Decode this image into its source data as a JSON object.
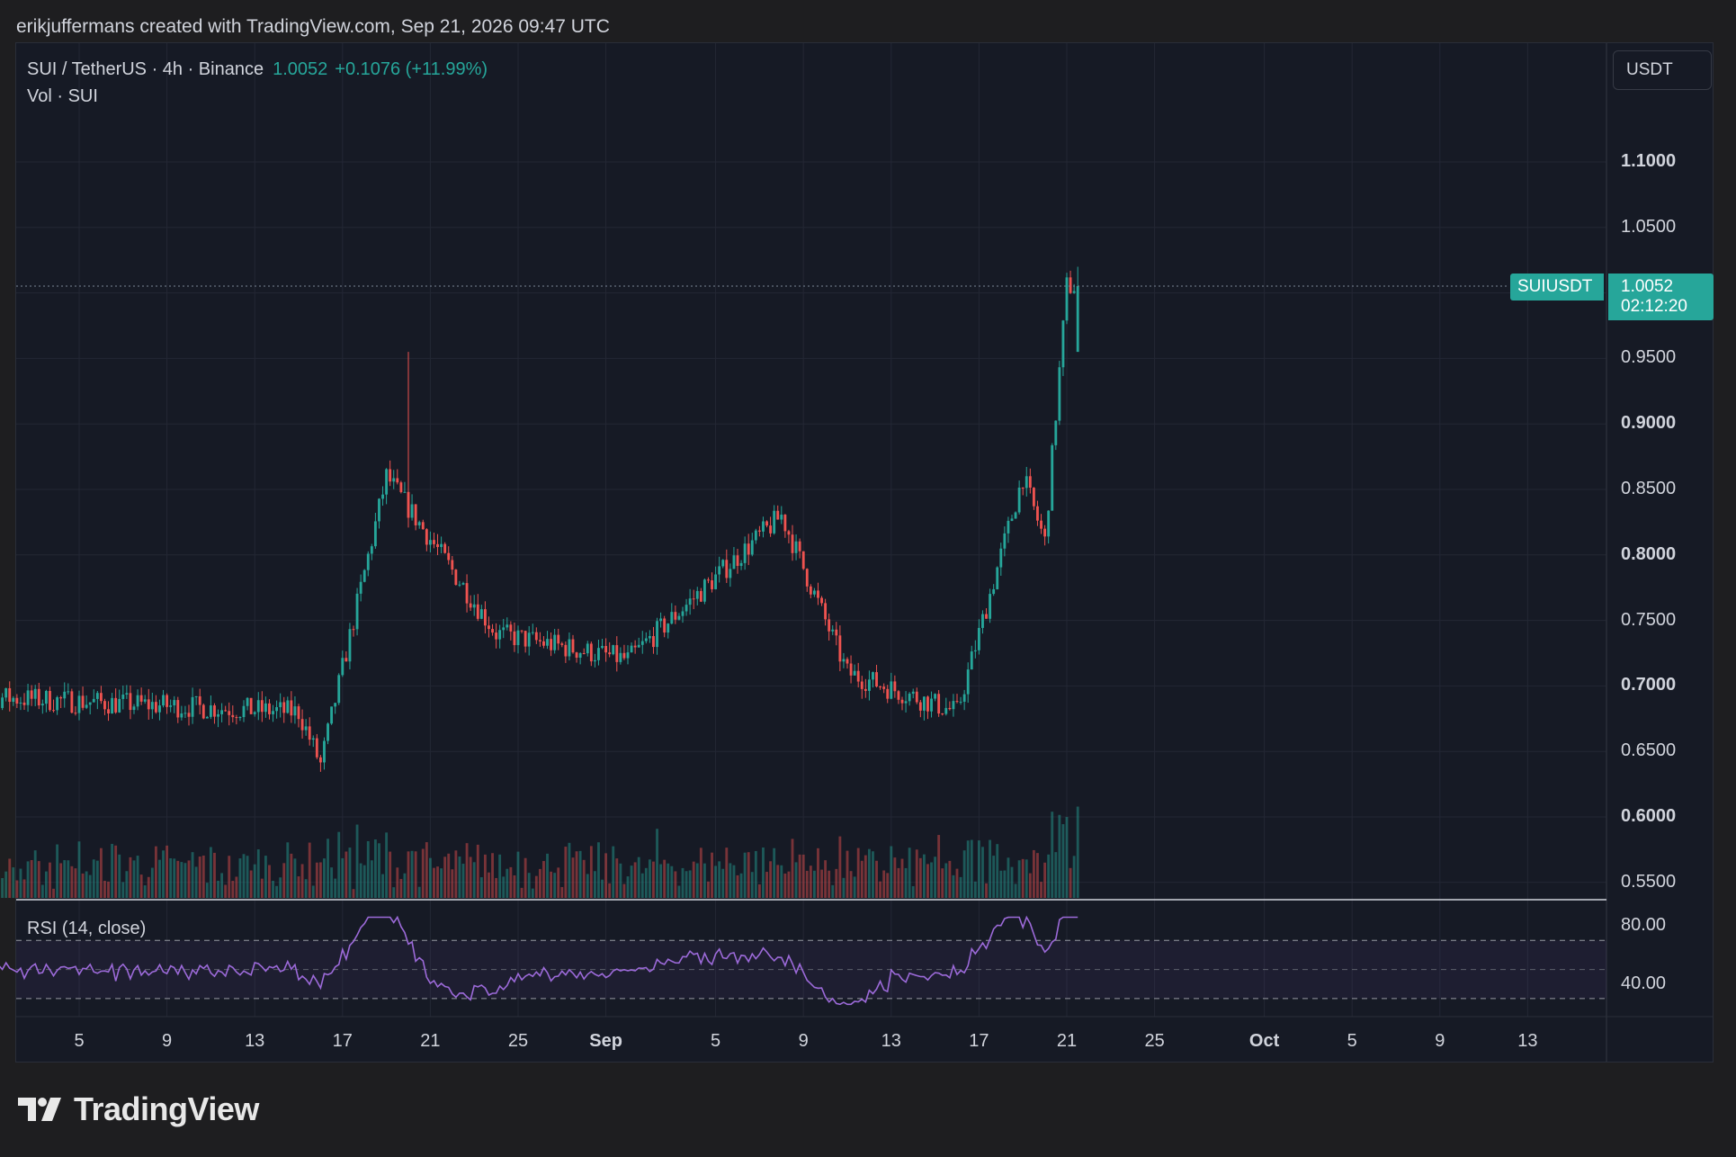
{
  "attribution": "erikjuffermans created with TradingView.com, Sep 21, 2026 09:47 UTC",
  "legend": {
    "symbol": "SUI / TetherUS · 4h · Binance",
    "price": "1.0052",
    "change": "+0.1076 (+11.99%)",
    "volume_label": "Vol · SUI"
  },
  "currency_button": "USDT",
  "price_tag": {
    "symbol": "SUIUSDT",
    "price": "1.0052",
    "countdown": "02:12:20"
  },
  "rsi_label": "RSI (14, close)",
  "brand": "TradingView",
  "colors": {
    "up": "#26a69a",
    "down": "#ef5350",
    "rsi": "#9c6ad9",
    "background": "#161a25"
  },
  "chart_data": {
    "type": "candlestick",
    "interval": "4h",
    "y_axis": {
      "ticks": [
        "1.1000",
        "1.0500",
        "1.0000",
        "0.9500",
        "0.9000",
        "0.8500",
        "0.8000",
        "0.7500",
        "0.7000",
        "0.6500",
        "0.6000",
        "0.5500"
      ],
      "bold_ticks": [
        "1.1000",
        "0.9000",
        "0.8000",
        "0.7000",
        "0.6000"
      ],
      "range": [
        0.535,
        1.17
      ]
    },
    "x_axis": {
      "ticks": [
        "5",
        "9",
        "13",
        "17",
        "21",
        "25",
        "Sep",
        "5",
        "9",
        "13",
        "17",
        "21",
        "25",
        "Oct",
        "5",
        "9",
        "13"
      ],
      "bold_ticks": [
        "Sep",
        "Oct"
      ]
    },
    "rsi": {
      "ticks": [
        "80.00",
        "40.00"
      ],
      "bands": [
        70,
        50,
        30
      ],
      "range": [
        20,
        90
      ]
    },
    "key_points": [
      {
        "date": "Aug 1",
        "close": 0.693
      },
      {
        "date": "Aug 17",
        "close": 0.68
      },
      {
        "date": "Aug 18",
        "close": 0.64
      },
      {
        "date": "Aug 21",
        "close": 0.86
      },
      {
        "date": "Aug 22",
        "high": 0.955
      },
      {
        "date": "Aug 26",
        "close": 0.74
      },
      {
        "date": "Sep 1",
        "close": 0.72
      },
      {
        "date": "Sep 8",
        "close": 0.83
      },
      {
        "date": "Sep 11",
        "close": 0.71
      },
      {
        "date": "Sep 16",
        "close": 0.68
      },
      {
        "date": "Sep 19",
        "close": 0.86
      },
      {
        "date": "Sep 20",
        "close": 0.81
      },
      {
        "date": "Sep 21",
        "close": 1.0052,
        "high": 1.02
      }
    ]
  }
}
